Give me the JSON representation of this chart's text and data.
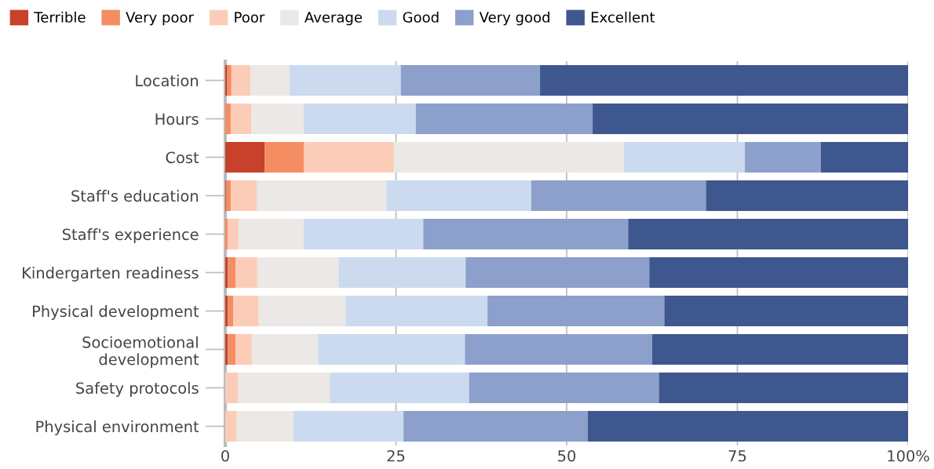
{
  "chart_data": {
    "type": "bar",
    "orientation": "horizontal",
    "stacked": true,
    "categories": [
      "Location",
      "Hours",
      "Cost",
      "Staff's education",
      "Staff's experience",
      "Kindergarten readiness",
      "Physical development",
      "Socioemotional\ndevelopment",
      "Safety protocols",
      "Physical environment"
    ],
    "series": [
      {
        "name": "Terrible",
        "color": "#c8412a",
        "values": [
          0.3,
          0,
          5.8,
          0.1,
          0,
          0.4,
          0.4,
          0.4,
          0,
          0
        ]
      },
      {
        "name": "Very poor",
        "color": "#f58d63",
        "values": [
          0.6,
          0.8,
          5.7,
          0.7,
          0.4,
          1.1,
          0.8,
          1.1,
          0,
          0
        ]
      },
      {
        "name": "Poor",
        "color": "#fbcdb9",
        "values": [
          2.8,
          3.0,
          13.2,
          3.8,
          1.6,
          3.2,
          3.7,
          2.4,
          1.9,
          1.7
        ]
      },
      {
        "name": "Average",
        "color": "#ece8e6",
        "values": [
          5.7,
          7.7,
          33.7,
          19.0,
          9.5,
          11.9,
          12.7,
          9.7,
          13.4,
          8.3
        ]
      },
      {
        "name": "Good",
        "color": "#ccdaf0",
        "values": [
          16.3,
          16.4,
          17.7,
          21.2,
          17.5,
          18.6,
          20.8,
          21.5,
          20.4,
          16.1
        ]
      },
      {
        "name": "Very good",
        "color": "#8ca0cb",
        "values": [
          20.4,
          25.9,
          11.1,
          25.6,
          30.0,
          26.9,
          25.9,
          27.4,
          27.8,
          27.0
        ]
      },
      {
        "name": "Excellent",
        "color": "#3f578f",
        "values": [
          53.9,
          46.2,
          12.8,
          29.6,
          41.0,
          37.9,
          35.7,
          37.5,
          36.5,
          46.9
        ]
      }
    ],
    "xlim": [
      0,
      100
    ],
    "xticks": [
      0,
      25,
      50,
      75,
      {
        "value": 100,
        "label": "100%"
      }
    ],
    "grid": "x",
    "legend": "top left"
  }
}
